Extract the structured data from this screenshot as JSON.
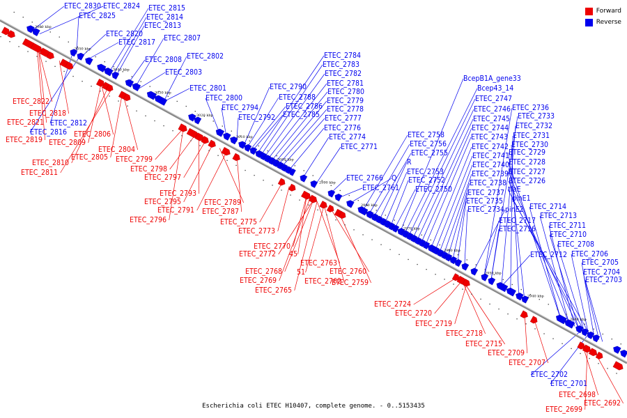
{
  "colors": {
    "forward": "#ee0000",
    "reverse": "#0000ee",
    "backbone": "#888888"
  },
  "caption": "Escherichia coli ETEC H10407, complete genome. - 0..5153435",
  "legend": [
    {
      "label": "Forward",
      "strand": "forward"
    },
    {
      "label": "Reverse",
      "strand": "reverse"
    }
  ],
  "ticks": [
    "3060 kbp",
    "3050 kbp",
    "3040 kbp",
    "3030 kbp",
    "3020 kbp",
    "3010 kbp",
    "3000 kbp",
    "2990 kbp",
    "2980 kbp",
    "2970 kbp",
    "2960 kbp",
    "2950 kbp",
    "2940 kbp",
    "2930 kbp"
  ],
  "reverse_labels": [
    "ETEC_2830",
    "ETEC_2824",
    "ETEC_2825",
    "ETEC_2815",
    "ETEC_2814",
    "ETEC_2813",
    "ETEC_2820",
    "ETEC_2817",
    "ETEC_2807",
    "ETEC_2808",
    "ETEC_2802",
    "ETEC_2803",
    "ETEC_2801",
    "ETEC_2800",
    "ETEC_2794",
    "ETEC_2792",
    "ETEC_2790",
    "ETEC_2788",
    "ETEC_2786",
    "ETEC_2785",
    "ETEC_2784",
    "ETEC_2783",
    "ETEC_2782",
    "ETEC_2781",
    "ETEC_2780",
    "ETEC_2779",
    "ETEC_2778",
    "ETEC_2777",
    "ETEC_2776",
    "ETEC_2774",
    "ETEC_2771",
    "ETEC_2766",
    "ETEC_2761",
    "Q",
    "ETEC_2758",
    "ETEC_2756",
    "ETEC_2755",
    "R",
    "ETEC_2753",
    "ETEC_2752",
    "ETEC_2750",
    "BcepB1A_gene33",
    "Bcep43_14",
    "ETEC_2747",
    "ETEC_2746",
    "ETEC_2745",
    "ETEC_2744",
    "ETEC_2743",
    "ETEC_2742",
    "ETEC_2741",
    "ETEC_2740",
    "ETEC_2739",
    "ETEC_2738",
    "ETEC_2737",
    "ETEC_2735",
    "ETEC_2734",
    "pinE2",
    "ETEC_2736",
    "ETEC_2733",
    "ETEC_2732",
    "ETEC_2731",
    "ETEC_2730",
    "ETEC_2729",
    "ETEC_2728",
    "ETEC_2727",
    "ETEC_2726",
    "tfaE",
    "pinE1",
    "ETEC_2717",
    "ETEC_2716",
    "ETEC_2714",
    "ETEC_2713",
    "ETEC_2711",
    "ETEC_2710",
    "ETEC_2708",
    "ETEC_2712",
    "ETEC_2706",
    "ETEC_2705",
    "ETEC_2704",
    "ETEC_2703",
    "ETEC_2702",
    "ETEC_2701",
    "ETEC_2816",
    "ETEC_2812"
  ],
  "forward_labels": [
    "ETEC_2822",
    "ETEC_2818",
    "ETEC_2821",
    "ETEC_2819",
    "ETEC_2806",
    "ETEC_2809",
    "ETEC_2810",
    "ETEC_2811",
    "ETEC_2804",
    "ETEC_2805",
    "ETEC_2799",
    "ETEC_2798",
    "ETEC_2797",
    "ETEC_2793",
    "ETEC_2795",
    "ETEC_2789",
    "ETEC_2791",
    "ETEC_2796",
    "ETEC_2787",
    "ETEC_2775",
    "ETEC_2773",
    "ETEC_2770",
    "ETEC_2772",
    "45",
    "ETEC_2763",
    "51",
    "ETEC_2768",
    "ETEC_2760",
    "ETEC_2769",
    "ETEC_2762",
    "ETEC_2765",
    "ETEC_2759",
    "ETEC_2724",
    "ETEC_2720",
    "ETEC_2719",
    "ETEC_2718",
    "ETEC_2715",
    "ETEC_2709",
    "ETEC_2707",
    "ETEC_2698",
    "ETEC_2692",
    "ETEC_2699"
  ]
}
